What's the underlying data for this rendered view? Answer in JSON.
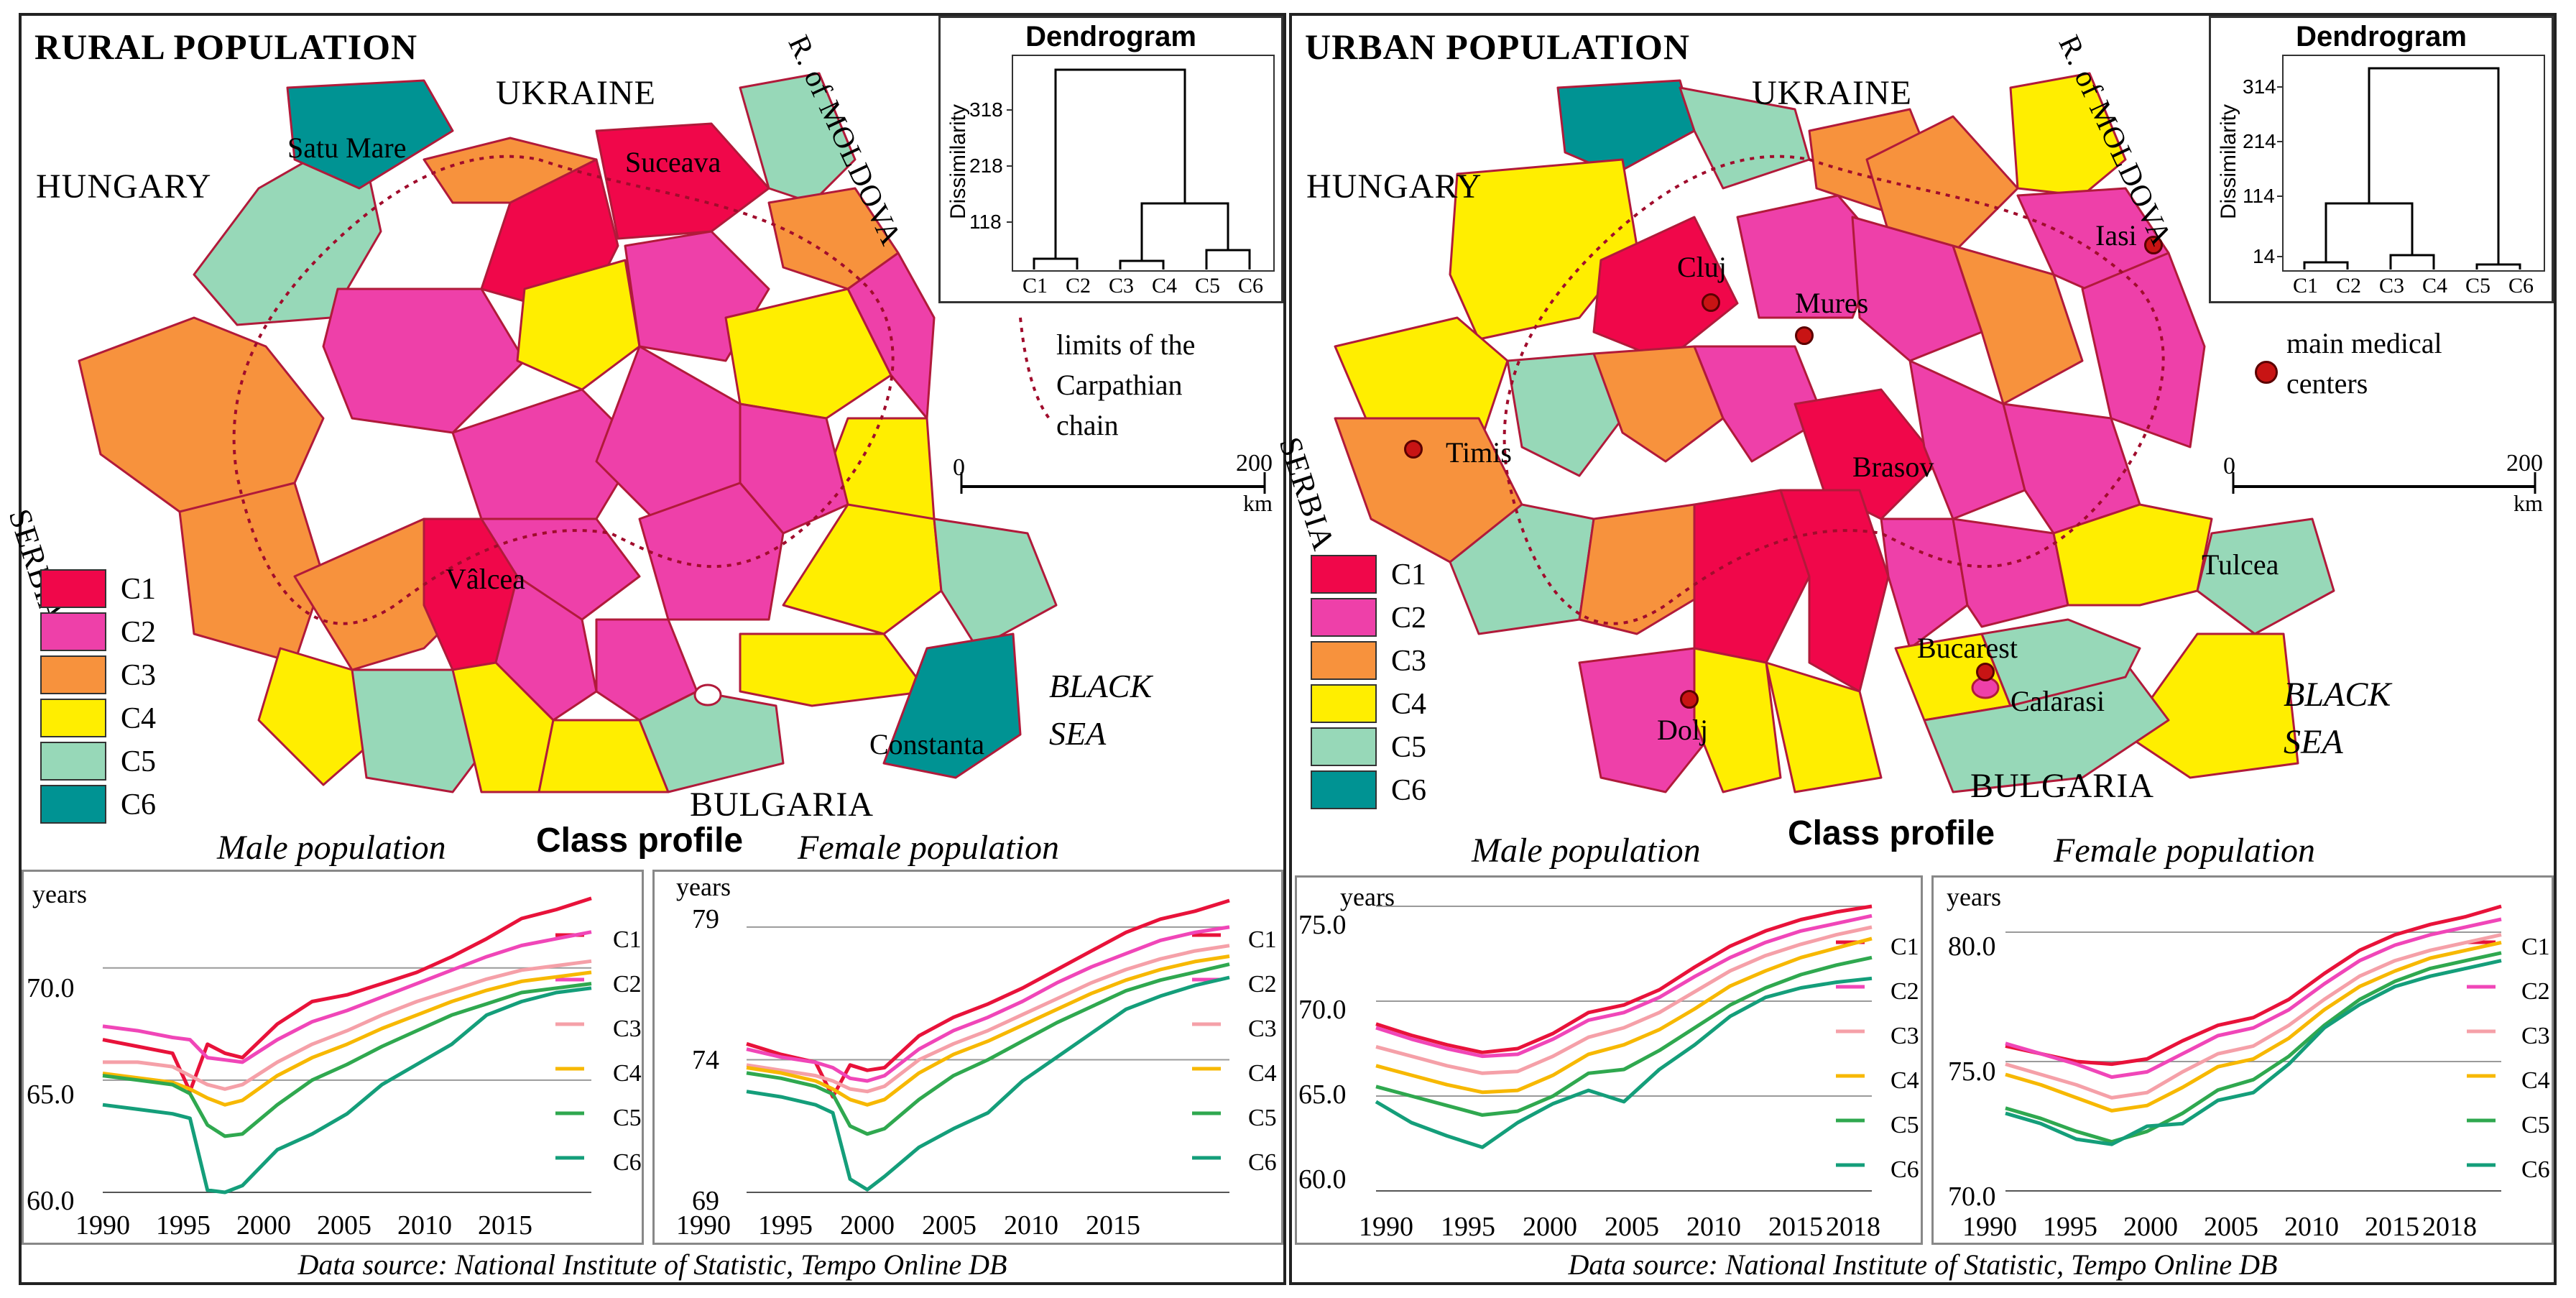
{
  "colors": {
    "C1": "#f0074a",
    "C2": "#ee40a9",
    "C3": "#f7923d",
    "C4": "#ffee00",
    "C5": "#97d8b8",
    "C6": "#009393"
  },
  "rural": {
    "title": "RURAL POPULATION",
    "countries": {
      "ukraine": "UKRAINE",
      "hungary": "HUNGARY",
      "serbia": "SERBIA",
      "moldova": "R. of MOLDOVA",
      "bulgaria": "BULGARIA"
    },
    "sea": {
      "line1": "BLACK",
      "line2": "SEA"
    },
    "county_labels": {
      "satu_mare": "Satu Mare",
      "suceava": "Suceava",
      "valcea": "Vâlcea",
      "constanta": "Constanta"
    },
    "legend_note": {
      "line1": "limits of the",
      "line2": "Carpathian",
      "line3": "chain"
    },
    "scale": {
      "zero": "0",
      "max": "200",
      "unit": "km"
    },
    "dendrogram": {
      "title": "Dendrogram",
      "ylabel": "Dissimilarity",
      "ticks": [
        "318",
        "218",
        "118"
      ],
      "leaves": [
        "C1",
        "C2",
        "C3",
        "C4",
        "C5",
        "C6"
      ]
    },
    "class_profile_title": "Class profile",
    "male": {
      "title": "Male population",
      "ylabel": "years",
      "yticks": [
        "70.0",
        "65.0",
        "60.0"
      ],
      "xticks": [
        "1990",
        "1995",
        "2000",
        "2005",
        "2010",
        "2015"
      ]
    },
    "female": {
      "title": "Female population",
      "ylabel": "years",
      "yticks": [
        "79",
        "74",
        "69"
      ],
      "xticks": [
        "1990",
        "1995",
        "2000",
        "2005",
        "2010",
        "2015"
      ]
    },
    "source": "Data source: National Institute of Statistic, Tempo Online DB"
  },
  "urban": {
    "title": "URBAN POPULATION",
    "countries": {
      "ukraine": "UKRAINE",
      "hungary": "HUNGARY",
      "serbia": "SERBIA",
      "moldova": "R. of MOLDOVA",
      "bulgaria": "BULGARIA"
    },
    "sea": {
      "line1": "BLACK",
      "line2": "SEA"
    },
    "county_labels": {
      "cluj": "Cluj",
      "mures": "Mures",
      "iasi": "Iasi",
      "timis": "Timis",
      "brasov": "Brasov",
      "bucarest": "Bucarest",
      "dolj": "Dolj",
      "calarasi": "Calarasi",
      "tulcea": "Tulcea"
    },
    "legend_note": {
      "line1": "main medical",
      "line2": "centers"
    },
    "scale": {
      "zero": "0",
      "max": "200",
      "unit": "km"
    },
    "dendrogram": {
      "title": "Dendrogram",
      "ylabel": "Dissimilarity",
      "ticks": [
        "314",
        "214",
        "114",
        "14"
      ],
      "leaves": [
        "C1",
        "C2",
        "C3",
        "C4",
        "C5",
        "C6"
      ]
    },
    "class_profile_title": "Class profile",
    "male": {
      "title": "Male population",
      "ylabel": "years",
      "yticks": [
        "75.0",
        "70.0",
        "65.0",
        "60.0"
      ],
      "xticks": [
        "1990",
        "1995",
        "2000",
        "2005",
        "2010",
        "2015",
        "2018"
      ]
    },
    "female": {
      "title": "Female population",
      "ylabel": "years",
      "yticks": [
        "80.0",
        "75.0",
        "70.0"
      ],
      "xticks": [
        "1990",
        "1995",
        "2000",
        "2005",
        "2010",
        "2015",
        "2018"
      ]
    },
    "source": "Data source: National Institute of Statistic, Tempo Online DB"
  },
  "legend": [
    "C1",
    "C2",
    "C3",
    "C4",
    "C5",
    "C6"
  ],
  "chart_data": [
    {
      "type": "line",
      "title": "Rural - Male population",
      "xlabel": "",
      "ylabel": "years",
      "xlim": [
        1990,
        2018
      ],
      "ylim": [
        60,
        73
      ],
      "x": [
        1990,
        1992,
        1994,
        1995,
        1996,
        1997,
        1998,
        2000,
        2002,
        2004,
        2006,
        2008,
        2010,
        2012,
        2014,
        2016,
        2018
      ],
      "series": [
        {
          "name": "C1",
          "values": [
            66.8,
            66.5,
            66.2,
            64.5,
            66.6,
            66.2,
            66.0,
            67.5,
            68.5,
            68.8,
            69.3,
            69.8,
            70.5,
            71.3,
            72.2,
            72.6,
            73.1
          ]
        },
        {
          "name": "C2",
          "values": [
            67.4,
            67.2,
            66.9,
            66.8,
            66.0,
            65.9,
            65.8,
            66.8,
            67.6,
            68.1,
            68.7,
            69.3,
            69.9,
            70.5,
            71.0,
            71.3,
            71.6
          ]
        },
        {
          "name": "C3",
          "values": [
            65.8,
            65.8,
            65.6,
            65.2,
            64.8,
            64.6,
            64.8,
            65.8,
            66.6,
            67.2,
            67.9,
            68.5,
            69.0,
            69.5,
            69.9,
            70.1,
            70.3
          ]
        },
        {
          "name": "C4",
          "values": [
            65.3,
            65.1,
            64.9,
            64.6,
            64.2,
            63.9,
            64.1,
            65.2,
            66.0,
            66.6,
            67.3,
            67.9,
            68.5,
            69.0,
            69.4,
            69.6,
            69.8
          ]
        },
        {
          "name": "C5",
          "values": [
            65.2,
            65.0,
            64.8,
            64.4,
            63.0,
            62.5,
            62.6,
            63.9,
            65.0,
            65.7,
            66.5,
            67.2,
            67.9,
            68.4,
            68.9,
            69.1,
            69.3
          ]
        },
        {
          "name": "C6",
          "values": [
            63.9,
            63.7,
            63.5,
            63.3,
            60.1,
            60.0,
            60.3,
            61.9,
            62.6,
            63.5,
            64.8,
            65.7,
            66.6,
            67.9,
            68.5,
            68.9,
            69.1
          ]
        }
      ]
    },
    {
      "type": "line",
      "title": "Rural - Female population",
      "xlabel": "",
      "ylabel": "years",
      "xlim": [
        1990,
        2018
      ],
      "ylim": [
        69,
        80
      ],
      "x": [
        1990,
        1992,
        1994,
        1995,
        1996,
        1997,
        1998,
        2000,
        2002,
        2004,
        2006,
        2008,
        2010,
        2012,
        2014,
        2016,
        2018
      ],
      "series": [
        {
          "name": "C1",
          "values": [
            74.6,
            74.2,
            73.9,
            72.6,
            73.8,
            73.6,
            73.7,
            74.9,
            75.6,
            76.1,
            76.7,
            77.4,
            78.1,
            78.8,
            79.3,
            79.6,
            80.0
          ]
        },
        {
          "name": "C2",
          "values": [
            74.4,
            74.1,
            73.9,
            73.7,
            73.3,
            73.2,
            73.4,
            74.4,
            75.1,
            75.6,
            76.2,
            76.9,
            77.5,
            78.0,
            78.5,
            78.8,
            79.0
          ]
        },
        {
          "name": "C3",
          "values": [
            73.8,
            73.6,
            73.4,
            73.2,
            72.9,
            72.8,
            73.0,
            74.0,
            74.6,
            75.1,
            75.7,
            76.3,
            76.9,
            77.4,
            77.8,
            78.1,
            78.3
          ]
        },
        {
          "name": "C4",
          "values": [
            73.7,
            73.5,
            73.2,
            72.9,
            72.5,
            72.3,
            72.5,
            73.5,
            74.2,
            74.7,
            75.3,
            75.9,
            76.5,
            77.0,
            77.4,
            77.7,
            77.9
          ]
        },
        {
          "name": "C5",
          "values": [
            73.5,
            73.3,
            73.0,
            72.7,
            71.5,
            71.2,
            71.4,
            72.5,
            73.4,
            74.0,
            74.7,
            75.4,
            76.0,
            76.6,
            77.0,
            77.3,
            77.6
          ]
        },
        {
          "name": "C6",
          "values": [
            72.8,
            72.6,
            72.3,
            72.0,
            69.5,
            69.1,
            69.6,
            70.7,
            71.4,
            72.0,
            73.2,
            74.1,
            75.0,
            75.9,
            76.4,
            76.8,
            77.1
          ]
        }
      ]
    },
    {
      "type": "line",
      "title": "Urban - Male population",
      "xlabel": "",
      "ylabel": "years",
      "xlim": [
        1990,
        2018
      ],
      "ylim": [
        60,
        75
      ],
      "x": [
        1990,
        1992,
        1994,
        1996,
        1998,
        2000,
        2002,
        2004,
        2006,
        2008,
        2010,
        2012,
        2014,
        2016,
        2018
      ],
      "series": [
        {
          "name": "C1",
          "values": [
            68.8,
            68.2,
            67.7,
            67.3,
            67.5,
            68.3,
            69.4,
            69.8,
            70.6,
            71.8,
            72.9,
            73.7,
            74.3,
            74.7,
            75.0
          ]
        },
        {
          "name": "C2",
          "values": [
            68.6,
            68.0,
            67.5,
            67.1,
            67.2,
            68.0,
            69.0,
            69.4,
            70.2,
            71.3,
            72.3,
            73.1,
            73.7,
            74.1,
            74.5
          ]
        },
        {
          "name": "C3",
          "values": [
            67.6,
            67.1,
            66.6,
            66.2,
            66.3,
            67.1,
            68.1,
            68.6,
            69.4,
            70.5,
            71.6,
            72.4,
            73.0,
            73.5,
            73.9
          ]
        },
        {
          "name": "C4",
          "values": [
            66.6,
            66.1,
            65.6,
            65.2,
            65.3,
            66.1,
            67.2,
            67.7,
            68.5,
            69.6,
            70.8,
            71.6,
            72.3,
            72.8,
            73.3
          ]
        },
        {
          "name": "C5",
          "values": [
            65.5,
            65.0,
            64.5,
            64.0,
            64.2,
            65.0,
            66.2,
            66.4,
            67.4,
            68.6,
            69.8,
            70.7,
            71.4,
            71.9,
            72.3
          ]
        },
        {
          "name": "C6",
          "values": [
            64.7,
            63.6,
            62.9,
            62.3,
            63.6,
            64.6,
            65.3,
            64.7,
            66.4,
            67.7,
            69.2,
            70.2,
            70.7,
            71.0,
            71.2
          ]
        }
      ]
    },
    {
      "type": "line",
      "title": "Urban - Female population",
      "xlabel": "",
      "ylabel": "years",
      "xlim": [
        1990,
        2018
      ],
      "ylim": [
        70,
        81
      ],
      "x": [
        1990,
        1992,
        1994,
        1996,
        1998,
        2000,
        2002,
        2004,
        2006,
        2008,
        2010,
        2012,
        2014,
        2016,
        2018
      ],
      "series": [
        {
          "name": "C1",
          "values": [
            75.6,
            75.3,
            75.0,
            74.9,
            75.1,
            75.8,
            76.4,
            76.7,
            77.4,
            78.4,
            79.3,
            79.9,
            80.3,
            80.6,
            81.0
          ]
        },
        {
          "name": "C2",
          "values": [
            75.7,
            75.3,
            74.9,
            74.4,
            74.6,
            75.3,
            76.0,
            76.3,
            77.0,
            78.0,
            78.9,
            79.5,
            79.9,
            80.2,
            80.5
          ]
        },
        {
          "name": "C3",
          "values": [
            74.9,
            74.5,
            74.1,
            73.6,
            73.8,
            74.6,
            75.3,
            75.6,
            76.4,
            77.4,
            78.3,
            78.9,
            79.3,
            79.6,
            79.9
          ]
        },
        {
          "name": "C4",
          "values": [
            74.5,
            74.1,
            73.6,
            73.1,
            73.3,
            74.0,
            74.8,
            75.1,
            75.9,
            77.0,
            77.9,
            78.5,
            79.0,
            79.3,
            79.6
          ]
        },
        {
          "name": "C5",
          "values": [
            73.2,
            72.8,
            72.3,
            71.9,
            72.3,
            73.0,
            73.9,
            74.3,
            75.2,
            76.4,
            77.4,
            78.1,
            78.6,
            78.9,
            79.2
          ]
        },
        {
          "name": "C6",
          "values": [
            73.0,
            72.6,
            72.0,
            71.8,
            72.5,
            72.6,
            73.5,
            73.8,
            74.9,
            76.3,
            77.2,
            77.9,
            78.3,
            78.6,
            78.9
          ]
        }
      ]
    }
  ]
}
